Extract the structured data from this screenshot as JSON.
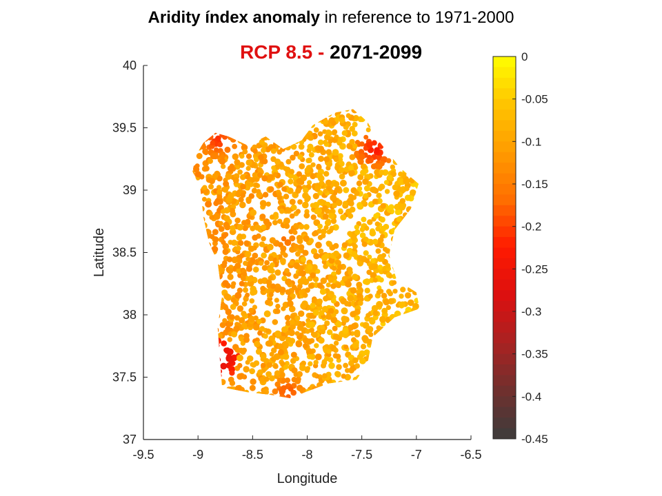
{
  "header": {
    "title_bold": "Aridity índex anomaly",
    "title_rest": " in reference to 1971-2000",
    "scenario": "RCP 8.5",
    "separator": " -  ",
    "period": "2071-2099"
  },
  "chart_data": {
    "type": "scatter",
    "xlabel": "Longitude",
    "ylabel": "Latitude",
    "xlim": [
      -9.5,
      -6.5
    ],
    "ylim": [
      37,
      40
    ],
    "xticks": [
      "-9.5",
      "-9",
      "-8.5",
      "-8",
      "-7.5",
      "-7",
      "-6.5"
    ],
    "yticks": [
      "40",
      "39.5",
      "39",
      "38.5",
      "38",
      "37.5",
      "37"
    ],
    "colorbar": {
      "range": [
        -0.45,
        0
      ],
      "ticks": [
        "0",
        "-0.05",
        "-0.1",
        "-0.15",
        "-0.2",
        "-0.25",
        "-0.3",
        "-0.35",
        "-0.4",
        "-0.45"
      ],
      "colormap": [
        "#ffff00",
        "#ffc400",
        "#ff9b00",
        "#ff6e00",
        "#ff1a00",
        "#dc1010",
        "#a82222",
        "#6f302e",
        "#3c3c3c"
      ]
    },
    "region_outline": [
      [
        -9.02,
        39.28
      ],
      [
        -8.95,
        39.38
      ],
      [
        -8.84,
        39.46
      ],
      [
        -8.72,
        39.43
      ],
      [
        -8.55,
        39.36
      ],
      [
        -8.38,
        39.43
      ],
      [
        -8.22,
        39.33
      ],
      [
        -8.05,
        39.4
      ],
      [
        -7.95,
        39.52
      ],
      [
        -7.75,
        39.62
      ],
      [
        -7.58,
        39.65
      ],
      [
        -7.45,
        39.55
      ],
      [
        -7.35,
        39.4
      ],
      [
        -7.15,
        39.18
      ],
      [
        -6.98,
        39.05
      ],
      [
        -7.05,
        38.85
      ],
      [
        -7.2,
        38.68
      ],
      [
        -7.25,
        38.48
      ],
      [
        -7.18,
        38.28
      ],
      [
        -7.0,
        38.18
      ],
      [
        -6.97,
        38.05
      ],
      [
        -7.2,
        37.98
      ],
      [
        -7.4,
        37.82
      ],
      [
        -7.45,
        37.6
      ],
      [
        -7.55,
        37.48
      ],
      [
        -7.8,
        37.45
      ],
      [
        -8.02,
        37.38
      ],
      [
        -8.15,
        37.33
      ],
      [
        -8.35,
        37.36
      ],
      [
        -8.55,
        37.38
      ],
      [
        -8.78,
        37.42
      ],
      [
        -8.8,
        37.65
      ],
      [
        -8.82,
        37.9
      ],
      [
        -8.78,
        38.15
      ],
      [
        -8.82,
        38.42
      ],
      [
        -8.9,
        38.58
      ],
      [
        -8.95,
        38.78
      ],
      [
        -8.98,
        39.02
      ],
      [
        -9.05,
        39.15
      ]
    ],
    "hotspots": [
      {
        "lon": -8.82,
        "lat": 39.4,
        "value": -0.22
      },
      {
        "lon": -7.38,
        "lat": 39.33,
        "value": -0.24
      },
      {
        "lon": -8.8,
        "lat": 37.65,
        "value": -0.3
      },
      {
        "lon": -8.2,
        "lat": 38.6,
        "value": -0.17
      },
      {
        "lon": -8.18,
        "lat": 37.38,
        "value": -0.2
      }
    ]
  }
}
